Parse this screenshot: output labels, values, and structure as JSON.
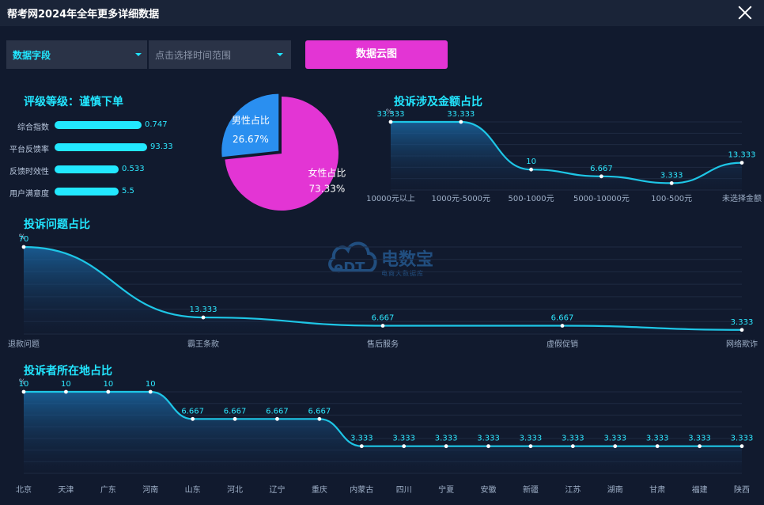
{
  "window": {
    "title": "帮考网2024年全年更多详细数据"
  },
  "filters": {
    "field_select": "数据字段",
    "time_range_placeholder": "点击选择时间范围",
    "wordcloud_button": "数据云图"
  },
  "rating": {
    "title": "评级等级：谨慎下单",
    "metrics": [
      {
        "label": "综合指数",
        "value": 0.747,
        "display": "0.747",
        "fill": 0.2
      },
      {
        "label": "平台反馈率",
        "value": 93.33,
        "display": "93.33",
        "fill": 0.2
      },
      {
        "label": "反馈时效性",
        "value": 0.533,
        "display": "0.533",
        "fill": 0.2
      },
      {
        "label": "用户满意度",
        "value": 5.5,
        "display": "5.5",
        "fill": 0.2
      }
    ]
  },
  "colors": {
    "accent": "#22e6ff",
    "male": "#2a8ff0",
    "female": "#e335d4",
    "button": "#e335d4",
    "line": "#1ec6e6"
  },
  "watermark": {
    "name": "电数宝",
    "sub": "电商大数据库",
    "letters": "eDT"
  },
  "chart_data": [
    {
      "type": "pie",
      "labels": [
        "男性占比",
        "女性占比"
      ],
      "values": [
        26.67,
        73.33
      ],
      "display": [
        "26.67%",
        "73.33%"
      ]
    },
    {
      "type": "line",
      "title": "投诉涉及金额占比",
      "ylabel": "%",
      "categories": [
        "10000元以上",
        "1000元-5000元",
        "500-1000元",
        "5000-10000元",
        "100-500元",
        "未选择金额"
      ],
      "values": [
        33.333,
        33.333,
        10,
        6.667,
        3.333,
        13.333
      ],
      "labels": [
        "33.333",
        "33.333",
        "10",
        "6.667",
        "3.333",
        "13.333"
      ],
      "ylim": [
        0,
        33.333
      ]
    },
    {
      "type": "line",
      "title": "投诉问题占比",
      "ylabel": "%",
      "categories": [
        "退款问题",
        "霸王条款",
        "售后服务",
        "虚假促销",
        "网络欺诈"
      ],
      "values": [
        70,
        13.333,
        6.667,
        6.667,
        3.333
      ],
      "labels": [
        "70",
        "13.333",
        "6.667",
        "6.667",
        "3.333"
      ],
      "ylim": [
        0,
        70
      ]
    },
    {
      "type": "line",
      "title": "投诉者所在地占比",
      "ylabel": "%",
      "categories": [
        "北京",
        "天津",
        "广东",
        "河南",
        "山东",
        "河北",
        "辽宁",
        "重庆",
        "内蒙古",
        "四川",
        "宁夏",
        "安徽",
        "新疆",
        "江苏",
        "湖南",
        "甘肃",
        "福建",
        "陕西"
      ],
      "values": [
        10,
        10,
        10,
        10,
        6.667,
        6.667,
        6.667,
        6.667,
        3.333,
        3.333,
        3.333,
        3.333,
        3.333,
        3.333,
        3.333,
        3.333,
        3.333,
        3.333
      ],
      "labels": [
        "10",
        "10",
        "10",
        "10",
        "6.667",
        "6.667",
        "6.667",
        "6.667",
        "3.333",
        "3.333",
        "3.333",
        "3.333",
        "3.333",
        "3.333",
        "3.333",
        "3.333",
        "3.333",
        "3.333"
      ],
      "ylim": [
        0,
        10
      ]
    }
  ]
}
